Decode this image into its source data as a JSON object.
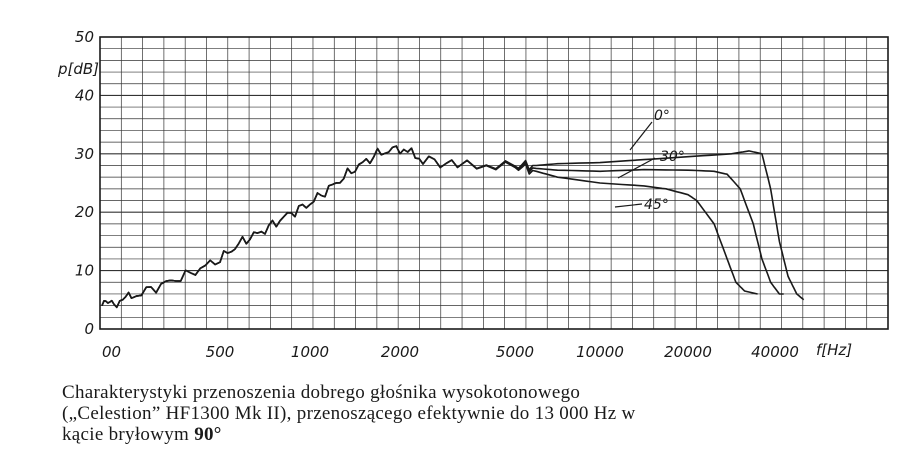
{
  "chart_data": {
    "type": "line",
    "title": "",
    "ylabel": "p[dB]",
    "xlabel": "f[Hz]",
    "ylim": [
      0,
      50
    ],
    "y_ticks": [
      0,
      10,
      20,
      30,
      40,
      50
    ],
    "x_ticks": [
      "00",
      "500",
      "1000",
      "2000",
      "5000",
      "10000",
      "20000",
      "40000"
    ],
    "grid": true,
    "series": [
      {
        "name": "0°",
        "points": [
          [
            0,
            4
          ],
          [
            0.1,
            4.5
          ],
          [
            0.25,
            5.5
          ],
          [
            0.5,
            7.5
          ],
          [
            0.75,
            9.5
          ],
          [
            1,
            12
          ],
          [
            1.25,
            15
          ],
          [
            1.5,
            17
          ],
          [
            1.75,
            19.5
          ],
          [
            2,
            21.5
          ],
          [
            2.25,
            24.5
          ],
          [
            2.5,
            27.5
          ],
          [
            2.75,
            30
          ],
          [
            3,
            31
          ],
          [
            3.2,
            29
          ],
          [
            3.5,
            28
          ],
          [
            4,
            28
          ],
          [
            4.25,
            28
          ],
          [
            4.5,
            28.3
          ],
          [
            5,
            28.5
          ],
          [
            5.5,
            29
          ],
          [
            6,
            29.5
          ],
          [
            6.5,
            30
          ],
          [
            6.7,
            30.5
          ],
          [
            6.85,
            30
          ],
          [
            6.95,
            24
          ],
          [
            7.05,
            15
          ],
          [
            7.15,
            9
          ],
          [
            7.25,
            6
          ],
          [
            7.33,
            5
          ]
        ]
      },
      {
        "name": "30°",
        "points": [
          [
            0,
            4
          ],
          [
            0.1,
            4.5
          ],
          [
            0.25,
            5.5
          ],
          [
            0.5,
            7.5
          ],
          [
            0.75,
            9.5
          ],
          [
            1,
            12
          ],
          [
            1.25,
            15
          ],
          [
            1.5,
            17
          ],
          [
            1.75,
            19.5
          ],
          [
            2,
            21.5
          ],
          [
            2.25,
            24.5
          ],
          [
            2.5,
            27.5
          ],
          [
            2.75,
            30
          ],
          [
            3,
            31
          ],
          [
            3.2,
            29
          ],
          [
            3.5,
            28
          ],
          [
            4,
            28
          ],
          [
            4.25,
            27.5
          ],
          [
            4.5,
            27.2
          ],
          [
            5,
            27
          ],
          [
            5.5,
            27.3
          ],
          [
            6,
            27.2
          ],
          [
            6.3,
            27
          ],
          [
            6.45,
            26.5
          ],
          [
            6.6,
            24
          ],
          [
            6.75,
            18
          ],
          [
            6.85,
            12
          ],
          [
            6.95,
            8
          ],
          [
            7.05,
            6
          ],
          [
            7.1,
            6
          ]
        ]
      },
      {
        "name": "45°",
        "points": [
          [
            0,
            4
          ],
          [
            0.1,
            4.5
          ],
          [
            0.25,
            5.5
          ],
          [
            0.5,
            7.5
          ],
          [
            0.75,
            9.5
          ],
          [
            1,
            12
          ],
          [
            1.25,
            15
          ],
          [
            1.5,
            17
          ],
          [
            1.75,
            19.5
          ],
          [
            2,
            21.5
          ],
          [
            2.25,
            24.5
          ],
          [
            2.5,
            27.5
          ],
          [
            2.75,
            30
          ],
          [
            3,
            31
          ],
          [
            3.2,
            29
          ],
          [
            3.5,
            28
          ],
          [
            4,
            27.8
          ],
          [
            4.25,
            27
          ],
          [
            4.5,
            26
          ],
          [
            5,
            25
          ],
          [
            5.5,
            24.5
          ],
          [
            5.75,
            24
          ],
          [
            6,
            23
          ],
          [
            6.1,
            22
          ],
          [
            6.3,
            18
          ],
          [
            6.45,
            12
          ],
          [
            6.55,
            8
          ],
          [
            6.65,
            6.5
          ],
          [
            6.8,
            6
          ]
        ]
      }
    ]
  },
  "caption": {
    "line1": "Charakterystyki przenoszenia dobrego głośnika wysokotonowego",
    "line2": "(„Celestion” HF1300 Mk II), przenoszącego efektywnie do 13 000 Hz w",
    "line3_text": "kącie bryłowym ",
    "line3_bold": "90°"
  }
}
